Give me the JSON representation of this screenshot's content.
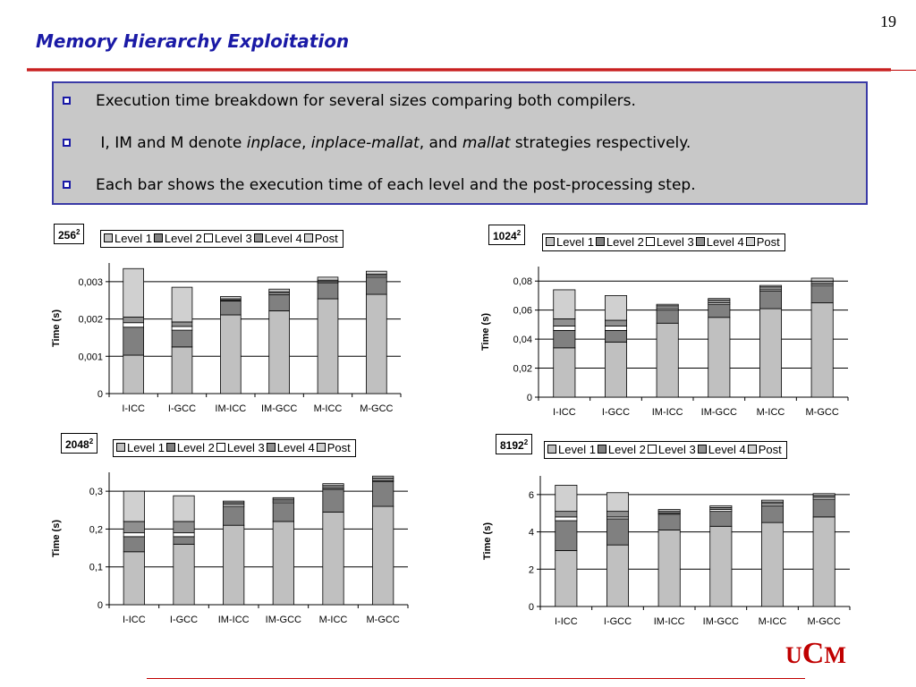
{
  "page": {
    "number": "19",
    "title": "Memory Hierarchy Exploitation",
    "bullets": [
      {
        "parts": [
          {
            "t": "Execution time breakdown for several sizes comparing both compilers.",
            "i": false
          }
        ]
      },
      {
        "parts": [
          {
            "t": " I, IM and M denote ",
            "i": false
          },
          {
            "t": "inplace",
            "i": true
          },
          {
            "t": ", ",
            "i": false
          },
          {
            "t": "inplace-mallat",
            "i": true
          },
          {
            "t": ", and ",
            "i": false
          },
          {
            "t": "mallat",
            "i": true
          },
          {
            "t": " strategies respectively.",
            "i": false
          }
        ]
      },
      {
        "parts": [
          {
            "t": "Each bar shows the execution time of each level and the post-processing step.",
            "i": false
          }
        ]
      }
    ],
    "logo": {
      "u": "U",
      "c": "C",
      "m": "M"
    }
  },
  "colors": {
    "level1": "#c0c0c0",
    "level2": "#808080",
    "level3": "#ffffff",
    "level4": "#909090",
    "post": "#d0d0d0",
    "title": "#1a1aa6",
    "accent_red": "#c00000"
  },
  "chart_data": [
    {
      "type": "bar",
      "stacked": true,
      "size_base": "256",
      "size_exp": "2",
      "categories": [
        "I-ICC",
        "I-GCC",
        "IM-ICC",
        "IM-GCC",
        "M-ICC",
        "M-GCC"
      ],
      "ylabel": "Time (s)",
      "ylim": [
        0,
        0.0035
      ],
      "yticks": [
        0,
        0.001,
        0.002,
        0.003
      ],
      "ytick_labels": [
        "0",
        "0,001",
        "0,002",
        "0,003"
      ],
      "legend": [
        "Level 1",
        "Level 2",
        "Level 3",
        "Level 4",
        "Post"
      ],
      "series": [
        {
          "name": "Level 1",
          "values": [
            0.00103,
            0.00125,
            0.00211,
            0.00222,
            0.00254,
            0.00266
          ]
        },
        {
          "name": "Level 2",
          "values": [
            0.00075,
            0.00045,
            0.00037,
            0.00043,
            0.00043,
            0.00046
          ]
        },
        {
          "name": "Level 3",
          "values": [
            0.00012,
            0.0001,
            2e-05,
            4e-05,
            3e-05,
            4e-05
          ]
        },
        {
          "name": "Level 4",
          "values": [
            0.00015,
            0.00012,
            4e-05,
            4e-05,
            4e-05,
            4e-05
          ]
        },
        {
          "name": "Post",
          "values": [
            0.0013,
            0.00093,
            6e-05,
            7e-05,
            8e-05,
            8e-05
          ]
        }
      ]
    },
    {
      "type": "bar",
      "stacked": true,
      "size_base": "1024",
      "size_exp": "2",
      "categories": [
        "I-ICC",
        "I-GCC",
        "IM-ICC",
        "IM-GCC",
        "M-ICC",
        "M-GCC"
      ],
      "ylabel": "Time (s)",
      "ylim": [
        0,
        0.09
      ],
      "yticks": [
        0,
        0.02,
        0.04,
        0.06,
        0.08
      ],
      "ytick_labels": [
        "0",
        "0,02",
        "0,04",
        "0,06",
        "0,08"
      ],
      "legend": [
        "Level 1",
        "Level 2",
        "Level 3",
        "Level 4",
        "Post"
      ],
      "series": [
        {
          "name": "Level 1",
          "values": [
            0.034,
            0.038,
            0.051,
            0.055,
            0.061,
            0.065
          ]
        },
        {
          "name": "Level 2",
          "values": [
            0.012,
            0.008,
            0.009,
            0.009,
            0.012,
            0.012
          ]
        },
        {
          "name": "Level 3",
          "values": [
            0.003,
            0.003,
            0.001,
            0.001,
            0.001,
            0.001
          ]
        },
        {
          "name": "Level 4",
          "values": [
            0.005,
            0.004,
            0.002,
            0.002,
            0.002,
            0.002
          ]
        },
        {
          "name": "Post",
          "values": [
            0.02,
            0.017,
            0.001,
            0.001,
            0.001,
            0.002
          ]
        }
      ]
    },
    {
      "type": "bar",
      "stacked": true,
      "size_base": "2048",
      "size_exp": "2",
      "categories": [
        "I-ICC",
        "I-GCC",
        "IM-ICC",
        "IM-GCC",
        "M-ICC",
        "M-GCC"
      ],
      "ylabel": "Time (s)",
      "ylim": [
        0,
        0.35
      ],
      "yticks": [
        0,
        0.1,
        0.2,
        0.3
      ],
      "ytick_labels": [
        "0",
        "0,1",
        "0,2",
        "0,3"
      ],
      "legend": [
        "Level 1",
        "Level 2",
        "Level 3",
        "Level 4",
        "Post"
      ],
      "series": [
        {
          "name": "Level 1",
          "values": [
            0.14,
            0.16,
            0.21,
            0.22,
            0.245,
            0.26
          ]
        },
        {
          "name": "Level 2",
          "values": [
            0.04,
            0.02,
            0.05,
            0.05,
            0.06,
            0.065
          ]
        },
        {
          "name": "Level 3",
          "values": [
            0.01,
            0.01,
            0.005,
            0.004,
            0.003,
            0.003
          ]
        },
        {
          "name": "Level 4",
          "values": [
            0.03,
            0.03,
            0.005,
            0.005,
            0.007,
            0.007
          ]
        },
        {
          "name": "Post",
          "values": [
            0.08,
            0.068,
            0.004,
            0.004,
            0.005,
            0.005
          ]
        }
      ]
    },
    {
      "type": "bar",
      "stacked": true,
      "size_base": "8192",
      "size_exp": "2",
      "categories": [
        "I-ICC",
        "I-GCC",
        "IM-ICC",
        "IM-GCC",
        "M-ICC",
        "M-GCC"
      ],
      "ylabel": "Time (s)",
      "ylim": [
        0,
        7
      ],
      "yticks": [
        0,
        2,
        4,
        6
      ],
      "ytick_labels": [
        "0",
        "2",
        "4",
        "6"
      ],
      "legend": [
        "Level 1",
        "Level 2",
        "Level 3",
        "Level 4",
        "Post"
      ],
      "series": [
        {
          "name": "Level 1",
          "values": [
            3.0,
            3.3,
            4.1,
            4.3,
            4.5,
            4.8
          ]
        },
        {
          "name": "Level 2",
          "values": [
            1.6,
            1.4,
            0.85,
            0.8,
            0.9,
            0.95
          ]
        },
        {
          "name": "Level 3",
          "values": [
            0.2,
            0.1,
            0.05,
            0.1,
            0.1,
            0.1
          ]
        },
        {
          "name": "Level 4",
          "values": [
            0.3,
            0.3,
            0.1,
            0.1,
            0.1,
            0.1
          ]
        },
        {
          "name": "Post",
          "values": [
            1.4,
            1.0,
            0.1,
            0.1,
            0.1,
            0.1
          ]
        }
      ]
    }
  ]
}
